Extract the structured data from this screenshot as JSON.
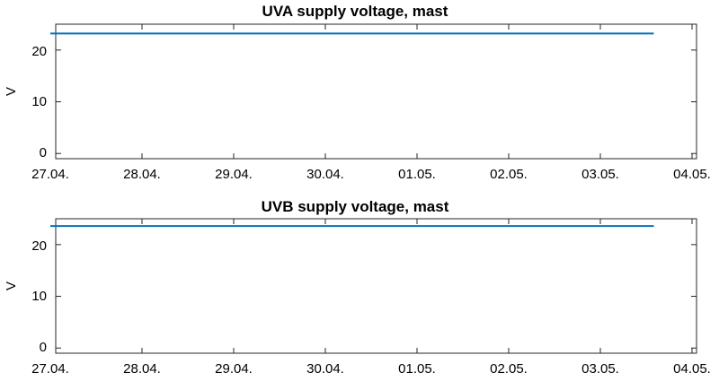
{
  "chart_data": [
    {
      "type": "line",
      "title": "UVA supply voltage, mast",
      "xlabel": "",
      "ylabel": "V",
      "x_ticks": [
        "27.04.",
        "28.04.",
        "29.04.",
        "30.04.",
        "01.05.",
        "02.05.",
        "03.05.",
        "04.05."
      ],
      "y_ticks": [
        0,
        10,
        20
      ],
      "xlim": [
        "27.04.",
        "04.05."
      ],
      "ylim": [
        -1,
        25
      ],
      "grid": false,
      "series": [
        {
          "color": "#0072bd",
          "x": [
            "27.04.",
            "28.04.",
            "29.04.",
            "30.04.",
            "01.05.",
            "02.05.",
            "03.05.",
            "03.05. 14:00"
          ],
          "y": [
            23.2,
            23.2,
            23.2,
            23.2,
            23.2,
            23.2,
            23.2,
            23.2
          ]
        }
      ]
    },
    {
      "type": "line",
      "title": "UVB supply voltage, mast",
      "xlabel": "",
      "ylabel": "V",
      "x_ticks": [
        "27.04.",
        "28.04.",
        "29.04.",
        "30.04.",
        "01.05.",
        "02.05.",
        "03.05.",
        "04.05."
      ],
      "y_ticks": [
        0,
        10,
        20
      ],
      "xlim": [
        "27.04.",
        "04.05."
      ],
      "ylim": [
        -1,
        25
      ],
      "grid": false,
      "series": [
        {
          "color": "#0072bd",
          "x": [
            "27.04.",
            "28.04.",
            "29.04.",
            "30.04.",
            "01.05.",
            "02.05.",
            "03.05.",
            "03.05. 14:00"
          ],
          "y": [
            23.6,
            23.6,
            23.6,
            23.6,
            23.6,
            23.6,
            23.6,
            23.6
          ]
        }
      ]
    }
  ]
}
